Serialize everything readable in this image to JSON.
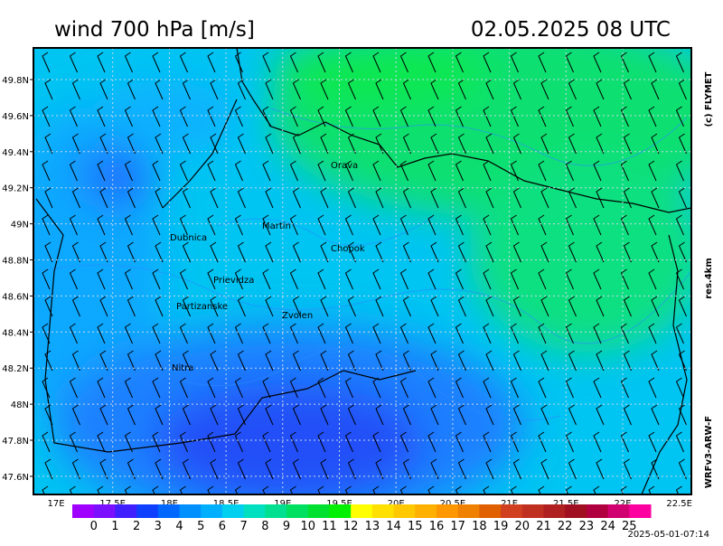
{
  "title": "wind 700 hPa [m/s]",
  "datetime": "02.05.2025   08 UTC",
  "copyright": "(c) FLYMET",
  "resolution": "res.4km",
  "model": "WRFv3-ARW-F",
  "timestamp": "2025-05-01-07:14",
  "map": {
    "lon_ticks": [
      "17E",
      "17.5E",
      "18E",
      "18.5E",
      "19E",
      "19.5E",
      "20E",
      "20.5E",
      "21E",
      "21.5E",
      "22E",
      "22.5E"
    ],
    "lat_ticks": [
      "49.8N",
      "49.6N",
      "49.4N",
      "49.2N",
      "49N",
      "48.8N",
      "48.6N",
      "48.4N",
      "48.2N",
      "48N",
      "47.8N",
      "47.6N"
    ],
    "cities": [
      "Orava",
      "Martin",
      "Dubnica",
      "Chopok",
      "Prievidza",
      "Partizanske",
      "Zvolen",
      "Nitra"
    ]
  },
  "legend": {
    "labels": [
      "0",
      "1",
      "2",
      "3",
      "4",
      "5",
      "6",
      "7",
      "8",
      "9",
      "10",
      "11",
      "12",
      "13",
      "14",
      "15",
      "16",
      "17",
      "18",
      "19",
      "20",
      "21",
      "22",
      "23",
      "24",
      "25"
    ],
    "colors": [
      "#a000ff",
      "#7a10ff",
      "#4020ff",
      "#1040ff",
      "#0068ff",
      "#0090ff",
      "#00b0ff",
      "#00d0f0",
      "#00e0c0",
      "#00e090",
      "#00e060",
      "#00e030",
      "#00f000",
      "#ffff00",
      "#ffe000",
      "#ffc800",
      "#ffb000",
      "#ff9800",
      "#f08000",
      "#e06000",
      "#d04020",
      "#c03020",
      "#b02020",
      "#a01020",
      "#b00040",
      "#d00070",
      "#ff00a0"
    ]
  }
}
